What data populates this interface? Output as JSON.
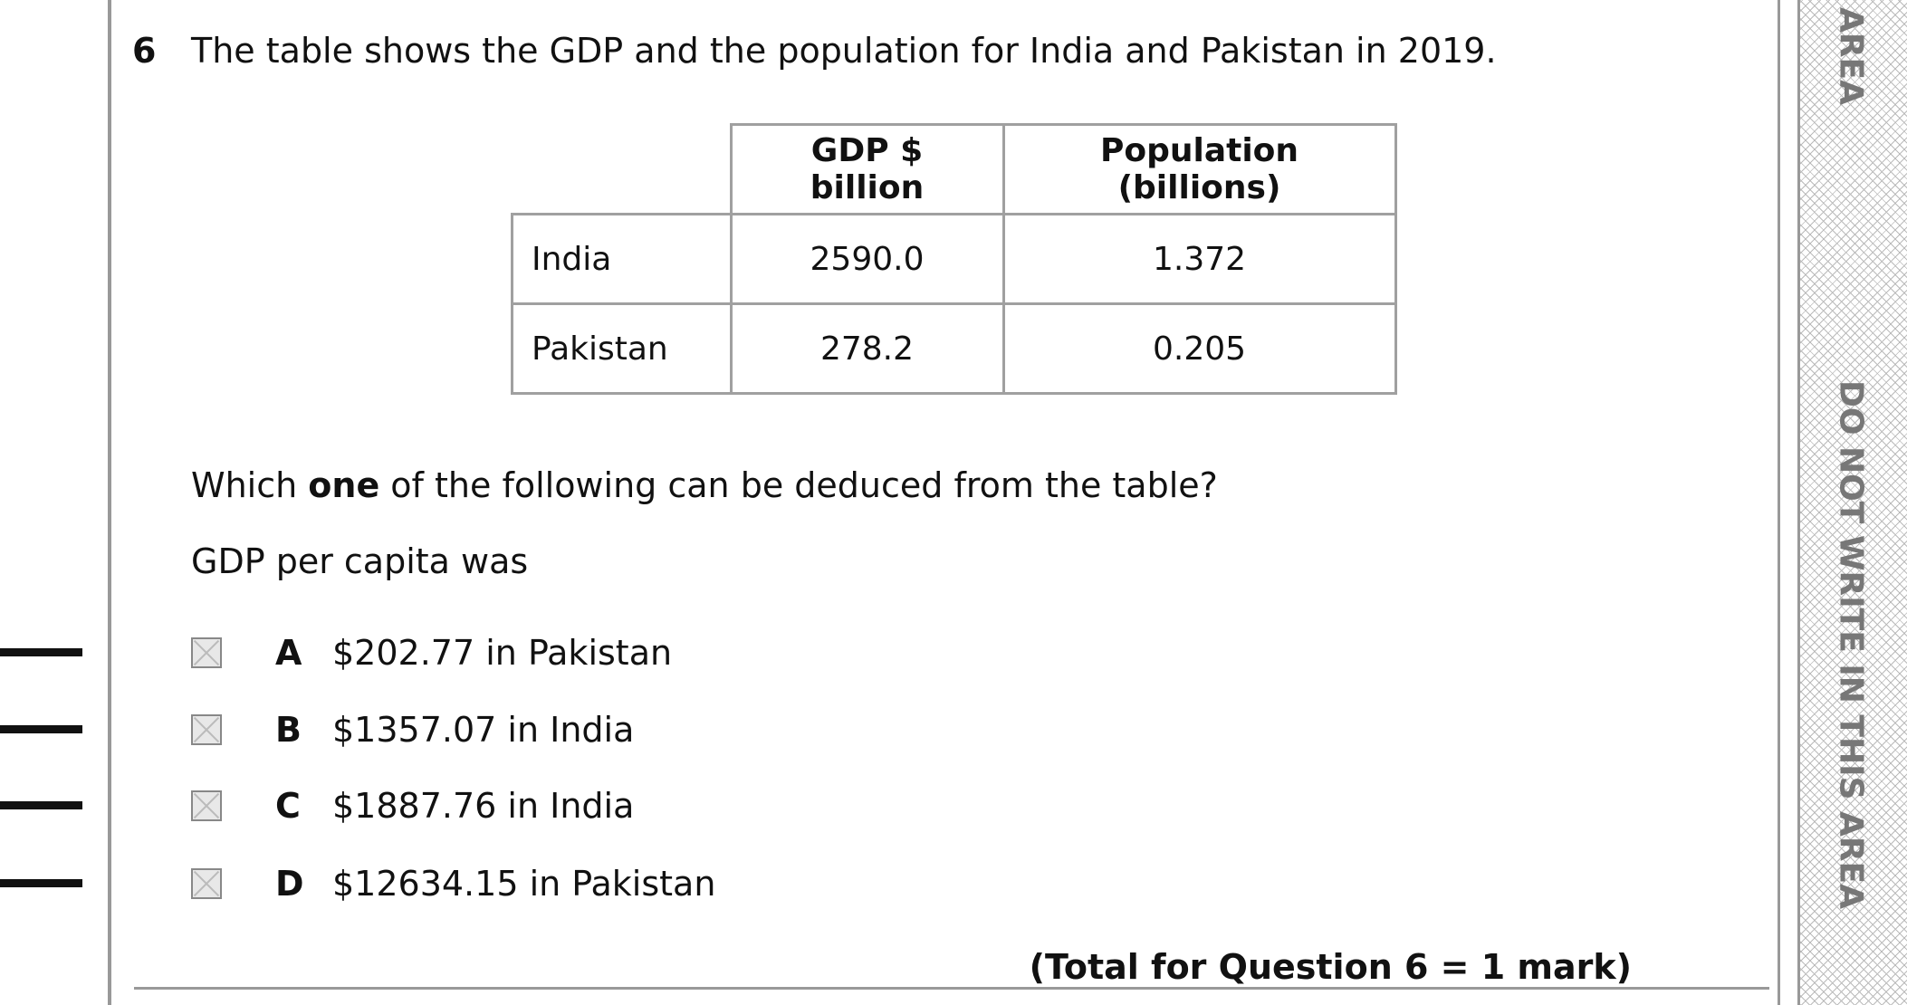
{
  "question": {
    "number": "6",
    "stem": "The table shows the GDP and the population for India and Pakistan in 2019.",
    "table": {
      "header": [
        "GDP $ billion",
        "Population (billions)"
      ],
      "rows": [
        [
          "India",
          "2590.0",
          "1.372"
        ],
        [
          "Pakistan",
          "278.2",
          "0.205"
        ]
      ]
    },
    "prompt": [
      "Which ",
      "one",
      " of the following can be deduced from the table?"
    ],
    "lead": "GDP per capita was",
    "options": [
      {
        "letter": "A",
        "text": "$202.77 in Pakistan"
      },
      {
        "letter": "B",
        "text": "$1357.07 in India"
      },
      {
        "letter": "C",
        "text": "$1887.76 in India"
      },
      {
        "letter": "D",
        "text": "$12634.15 in Pakistan"
      }
    ],
    "total": "(Total for Question 6 = 1 mark)"
  },
  "margin": {
    "top": "AREA",
    "main": "DO NOT WRITE IN THIS AREA"
  }
}
